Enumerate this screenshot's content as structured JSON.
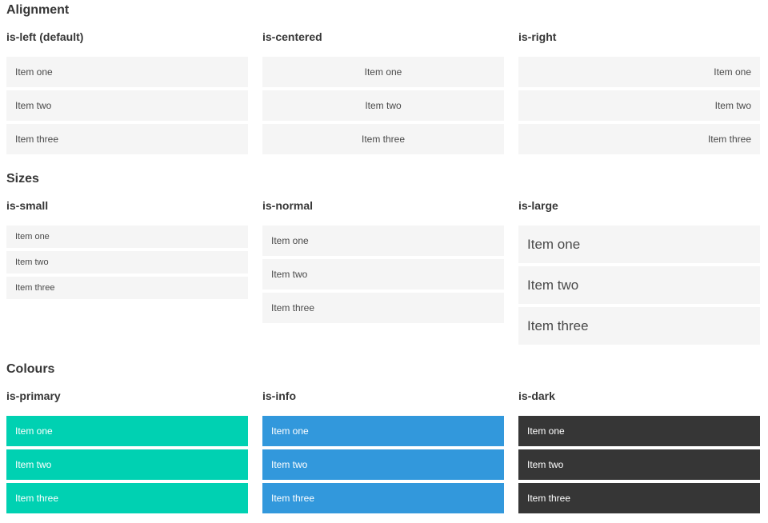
{
  "items": [
    "Item one",
    "Item two",
    "Item three"
  ],
  "sections": [
    {
      "title": "Alignment",
      "groups": [
        {
          "label": "is-left (default)"
        },
        {
          "label": "is-centered"
        },
        {
          "label": "is-right"
        }
      ]
    },
    {
      "title": "Sizes",
      "groups": [
        {
          "label": "is-small"
        },
        {
          "label": "is-normal"
        },
        {
          "label": "is-large"
        }
      ]
    },
    {
      "title": "Colours",
      "groups": [
        {
          "label": "is-primary"
        },
        {
          "label": "is-info"
        },
        {
          "label": "is-dark"
        }
      ]
    }
  ],
  "colors": {
    "primary": "#00d1b2",
    "info": "#3298dc",
    "dark": "#363636",
    "item_background": "#f5f5f5",
    "item_text": "#4a4a4a",
    "heading_text": "#363636",
    "colored_item_text": "#ffffff"
  }
}
